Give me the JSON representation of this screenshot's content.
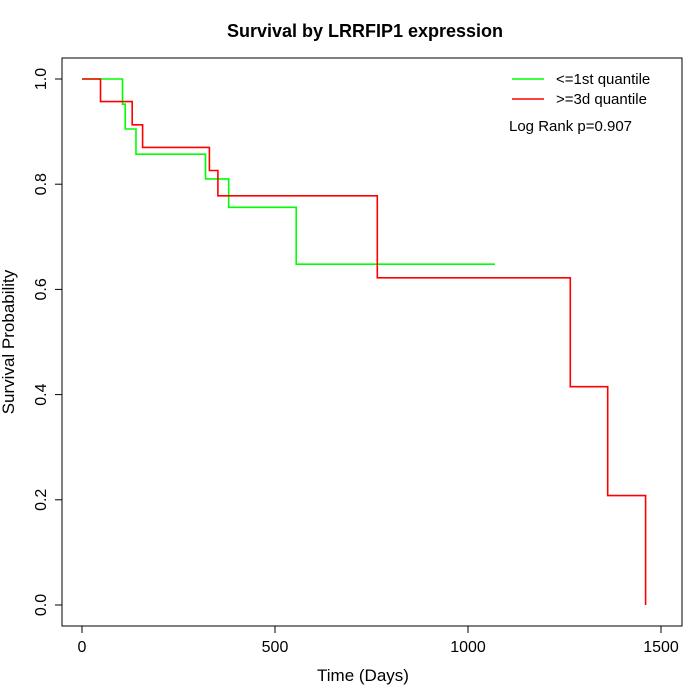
{
  "chart_data": {
    "type": "line",
    "step": true,
    "title": "Survival by LRRFIP1 expression",
    "xlabel": "Time (Days)",
    "ylabel": "Survival Probability",
    "xlim": [
      0,
      1500
    ],
    "ylim": [
      0,
      1.0
    ],
    "x_ticks": [
      "0",
      "500",
      "1000",
      "1500"
    ],
    "y_ticks": [
      "0.0",
      "0.2",
      "0.4",
      "0.6",
      "0.8",
      "1.0"
    ],
    "grid": false,
    "legend_position": "top-right",
    "annotation": "Log Rank p=0.907",
    "series": [
      {
        "name": "<=1st quantile",
        "color": "#00ff00",
        "points": [
          [
            0,
            1.0
          ],
          [
            105,
            1.0
          ],
          [
            105,
            0.952
          ],
          [
            112,
            0.952
          ],
          [
            112,
            0.905
          ],
          [
            140,
            0.905
          ],
          [
            140,
            0.857
          ],
          [
            320,
            0.857
          ],
          [
            320,
            0.81
          ],
          [
            380,
            0.81
          ],
          [
            380,
            0.756
          ],
          [
            555,
            0.756
          ],
          [
            555,
            0.648
          ],
          [
            1070,
            0.648
          ]
        ]
      },
      {
        "name": ">=3d quantile",
        "color": "#ff0000",
        "points": [
          [
            0,
            1.0
          ],
          [
            48,
            1.0
          ],
          [
            48,
            0.957
          ],
          [
            130,
            0.957
          ],
          [
            130,
            0.913
          ],
          [
            157,
            0.913
          ],
          [
            157,
            0.87
          ],
          [
            330,
            0.87
          ],
          [
            330,
            0.826
          ],
          [
            352,
            0.826
          ],
          [
            352,
            0.778
          ],
          [
            765,
            0.778
          ],
          [
            765,
            0.622
          ],
          [
            1265,
            0.622
          ],
          [
            1265,
            0.415
          ],
          [
            1362,
            0.415
          ],
          [
            1362,
            0.208
          ],
          [
            1460,
            0.208
          ],
          [
            1460,
            0.0
          ]
        ]
      }
    ]
  }
}
